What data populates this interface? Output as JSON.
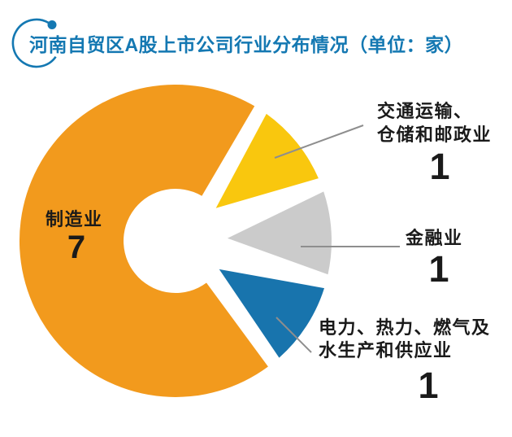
{
  "title": "河南自贸区A股上市公司行业分布情况（单位：家）",
  "colors": {
    "title_blue": "#1478B2",
    "label_text": "#1A1A1A",
    "leader_line": "#8E8E8E",
    "background": "#FFFFFF"
  },
  "chart_data": {
    "type": "pie",
    "variant": "donut-exploded",
    "title": "河南自贸区A股上市公司行业分布情况",
    "unit_note": "单位：家",
    "total": 10,
    "legend_position": "callout-labels",
    "start_angle_deg": 51,
    "clockwise": true,
    "series": [
      {
        "name": "制造业",
        "slug": "manufacturing",
        "value": 7,
        "color": "#F29A1D"
      },
      {
        "name": "交通运输、仓储和邮政业",
        "slug": "transport",
        "value": 1,
        "color": "#F9C70E"
      },
      {
        "name": "金融业",
        "slug": "finance",
        "value": 1,
        "color": "#CBCBCB"
      },
      {
        "name": "电力、热力、燃气及水生产和供应业",
        "slug": "power",
        "value": 1,
        "color": "#1874AD"
      }
    ]
  },
  "callouts": {
    "manufacturing": {
      "line1": "制造业",
      "count": "7"
    },
    "transport": {
      "line1": "交通运输、",
      "line2": "仓储和邮政业",
      "count": "1"
    },
    "finance": {
      "line1": "金融业",
      "count": "1"
    },
    "power": {
      "line1": "电力、热力、燃气及",
      "line2": "水生产和供应业",
      "count": "1"
    }
  }
}
